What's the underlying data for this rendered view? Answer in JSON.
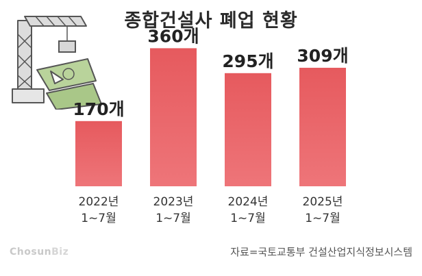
{
  "title": "종합건설사 폐업 현황",
  "chart_data": {
    "type": "bar",
    "categories": [
      [
        "2022년",
        "1~7월"
      ],
      [
        "2023년",
        "1~7월"
      ],
      [
        "2024년",
        "1~7월"
      ],
      [
        "2025년",
        "1~7월"
      ]
    ],
    "values": [
      170,
      360,
      295,
      309
    ],
    "value_labels": [
      "170개",
      "360개",
      "295개",
      "309개"
    ],
    "unit": "개",
    "ylim": [
      0,
      400
    ],
    "grid": false,
    "bar_color": "#E65A5E",
    "bar_color_light": "#EE7579"
  },
  "source": "자료=국토교통부 건설산업지식정보시스템",
  "brand": {
    "main": "Chosun",
    "sub": "Biz"
  },
  "illustration": {
    "icon": "crane-broken-banknote-icon",
    "banknote_color": "#B8D19A",
    "crane_color": "#DADADA"
  }
}
